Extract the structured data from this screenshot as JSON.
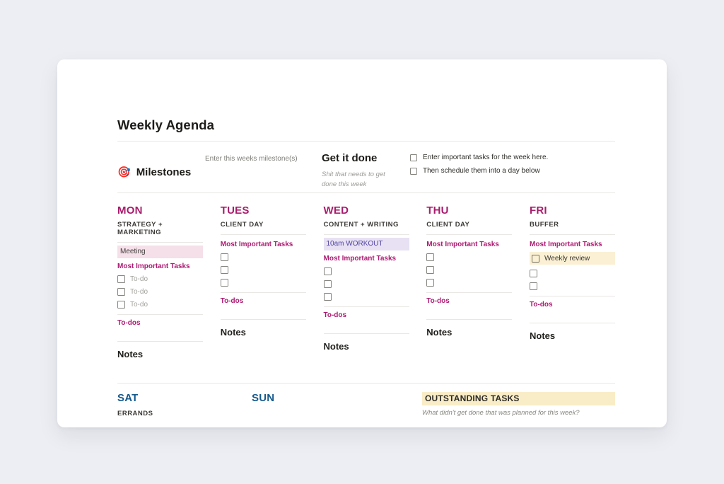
{
  "page": {
    "title": "Weekly Agenda"
  },
  "milestones": {
    "icon": "🎯",
    "label": "Milestones",
    "hint": "Enter this weeks milestone(s)",
    "get_it_done_title": "Get it done",
    "get_it_done_caption": "Shit that needs to get done this week",
    "tasks": [
      {
        "label": "Enter important tasks for the week here.",
        "checked": false
      },
      {
        "label": "Then schedule them into a day below",
        "checked": false
      }
    ]
  },
  "week": {
    "labels": {
      "mit": "Most Important Tasks",
      "todos": "To-dos",
      "notes": "Notes"
    },
    "days": [
      {
        "name": "MON",
        "focus": "STRATEGY + MARKETING",
        "event": {
          "text": "Meeting",
          "highlight": "pink"
        },
        "todos": [
          {
            "label": "To-do",
            "checked": false
          },
          {
            "label": "To-do",
            "checked": false
          },
          {
            "label": "To-do",
            "checked": false
          }
        ]
      },
      {
        "name": "TUES",
        "focus": "CLIENT DAY",
        "todos": [
          {
            "label": "",
            "checked": false
          },
          {
            "label": "",
            "checked": false
          },
          {
            "label": "",
            "checked": false
          }
        ]
      },
      {
        "name": "WED",
        "focus": "CONTENT + WRITING",
        "event": {
          "text": "10am WORKOUT",
          "highlight": "purple"
        },
        "todos": [
          {
            "label": "",
            "checked": false
          },
          {
            "label": "",
            "checked": false
          },
          {
            "label": "",
            "checked": false
          }
        ]
      },
      {
        "name": "THU",
        "focus": "CLIENT DAY",
        "todos": [
          {
            "label": "",
            "checked": false
          },
          {
            "label": "",
            "checked": false
          },
          {
            "label": "",
            "checked": false
          }
        ]
      },
      {
        "name": "FRI",
        "focus": "BUFFER",
        "todos": [
          {
            "label": "Weekly review",
            "checked": false,
            "highlight": "yellow"
          },
          {
            "label": "",
            "checked": false
          },
          {
            "label": "",
            "checked": false
          }
        ]
      }
    ]
  },
  "weekend": {
    "sat": {
      "name": "SAT",
      "focus": "ERRANDS"
    },
    "sun": {
      "name": "SUN"
    },
    "outstanding": {
      "title": "OUTSTANDING TASKS",
      "caption": "What didn't get done that was planned for this week?"
    }
  },
  "colors": {
    "page_background": "#eceef3",
    "card_background": "#ffffff",
    "weekday_accent": "#a81c6c",
    "task_label_accent": "#ad1a72",
    "weekend_accent": "#15598c",
    "pink_highlight": "#f5dfe9",
    "purple_highlight": "#e7e1f3",
    "purple_text": "#5243a0",
    "yellow_highlight": "#fbf0d4",
    "outstanding_highlight": "#f9edc7",
    "muted_text": "#9b9a97",
    "body_text": "#37352f"
  }
}
